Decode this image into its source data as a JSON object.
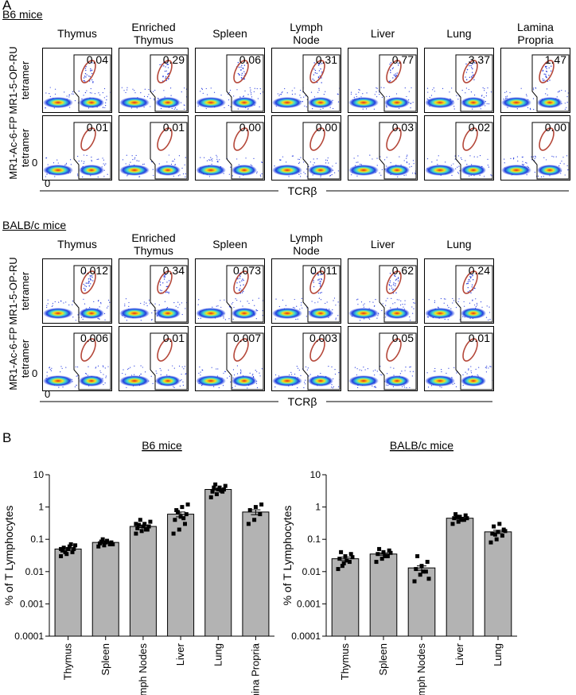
{
  "panel_a": {
    "label": "A",
    "sections": [
      {
        "title": "B6 mice",
        "columns": [
          "Thymus",
          "Enriched Thymus",
          "Spleen",
          "Lymph Node",
          "Liver",
          "Lung",
          "Lamina Propria"
        ],
        "rows": [
          {
            "label": "MR1-5-OP-RU tetramer",
            "gates": [
              "0.04",
              "0.29",
              "0.06",
              "0.31",
              "0.77",
              "3.37",
              "1.47"
            ]
          },
          {
            "label": "MR1-Ac-6-FP tetramer",
            "gates": [
              "0.01",
              "0.01",
              "0.00",
              "0.00",
              "0.03",
              "0.02",
              "0.00"
            ]
          }
        ],
        "y_zero": "0",
        "x_zero": "0",
        "x_axis_label": "TCRβ"
      },
      {
        "title": "BALB/c mice",
        "columns": [
          "Thymus",
          "Enriched Thymus",
          "Spleen",
          "Lymph Node",
          "Liver",
          "Lung"
        ],
        "rows": [
          {
            "label": "MR1-5-OP-RU tetramer",
            "gates": [
              "0.012",
              "0.34",
              "0.073",
              "0.011",
              "0.62",
              "0.24"
            ]
          },
          {
            "label": "MR1-Ac-6-FP tetramer",
            "gates": [
              "0.006",
              "0.01",
              "0.007",
              "0.003",
              "0.05",
              "0.01"
            ]
          }
        ],
        "y_zero": "0",
        "x_zero": "0",
        "x_axis_label": "TCRβ"
      }
    ]
  },
  "panel_b": {
    "label": "B"
  },
  "chart_data": [
    {
      "type": "bar",
      "title": "B6 mice",
      "y_label": "% of T Lymphocytes",
      "categories": [
        "Thymus",
        "Spleen",
        "Lymph Nodes",
        "Liver",
        "Lung",
        "Lamina Propria"
      ],
      "values": [
        0.05,
        0.08,
        0.25,
        0.6,
        3.5,
        0.7
      ],
      "errors": [
        0.005,
        0.005,
        0.02,
        0.1,
        0.25,
        0.12
      ],
      "points": [
        [
          0.03,
          0.035,
          0.04,
          0.045,
          0.05,
          0.05,
          0.055,
          0.06,
          0.065,
          0.04,
          0.07,
          0.05
        ],
        [
          0.06,
          0.065,
          0.07,
          0.075,
          0.08,
          0.08,
          0.085,
          0.09,
          0.07,
          0.1
        ],
        [
          0.15,
          0.18,
          0.2,
          0.22,
          0.25,
          0.25,
          0.28,
          0.3,
          0.35,
          0.4,
          0.2,
          0.3
        ],
        [
          0.15,
          0.2,
          0.3,
          0.4,
          0.5,
          0.6,
          0.8,
          1,
          1.2,
          0.7,
          0.45
        ],
        [
          2,
          2.5,
          3,
          3,
          3.5,
          3.5,
          4,
          4,
          4.5,
          5,
          3.2
        ],
        [
          0.3,
          0.4,
          0.6,
          0.8,
          1,
          1.2
        ]
      ],
      "color": "#b3b3b3",
      "point_color": "#000000",
      "log_scale": true,
      "ylim": [
        0.0001,
        10
      ],
      "yticks": [
        0.0001,
        0.001,
        0.01,
        0.1,
        1,
        10
      ]
    },
    {
      "type": "bar",
      "title": "BALB/c mice",
      "y_label": "% of T Lymphocytes",
      "categories": [
        "Thymus",
        "Spleen",
        "Lymph Nodes",
        "Liver",
        "Lung"
      ],
      "values": [
        0.025,
        0.035,
        0.013,
        0.45,
        0.17
      ],
      "errors": [
        0.003,
        0.003,
        0.002,
        0.03,
        0.02
      ],
      "points": [
        [
          0.012,
          0.018,
          0.02,
          0.025,
          0.03,
          0.035,
          0.04,
          0.022,
          0.028,
          0.015
        ],
        [
          0.02,
          0.025,
          0.03,
          0.035,
          0.04,
          0.045,
          0.05,
          0.03,
          0.038
        ],
        [
          0.005,
          0.008,
          0.01,
          0.012,
          0.015,
          0.02,
          0.03,
          0.01,
          0.006
        ],
        [
          0.3,
          0.35,
          0.4,
          0.45,
          0.5,
          0.55,
          0.6,
          0.4,
          0.45,
          0.5
        ],
        [
          0.08,
          0.1,
          0.13,
          0.15,
          0.17,
          0.2,
          0.25,
          0.3,
          0.18,
          0.14
        ]
      ],
      "color": "#b3b3b3",
      "point_color": "#000000",
      "log_scale": true,
      "ylim": [
        0.0001,
        10
      ],
      "yticks": [
        0.0001,
        0.001,
        0.01,
        0.1,
        1,
        10
      ]
    }
  ]
}
